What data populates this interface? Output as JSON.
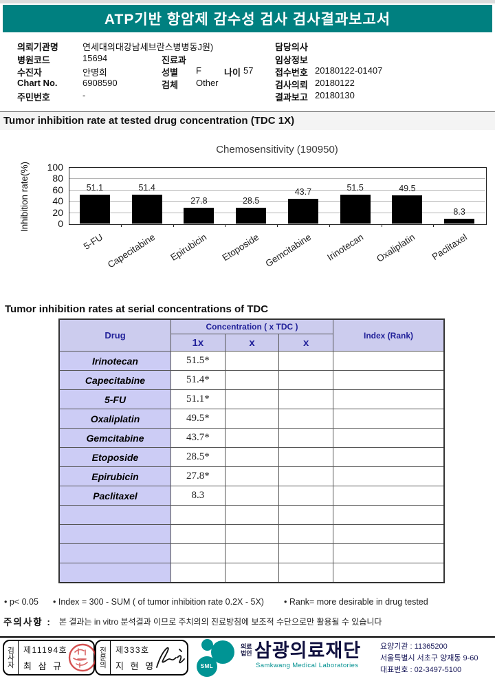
{
  "report": {
    "title": "ATP기반 항암제 감수성 검사 검사결과보고서"
  },
  "colors": {
    "banner_bg": "#008080",
    "table_header_bg": "#ccccee",
    "drug_cell_bg": "#ccccf5",
    "header_text": "#22229a",
    "bar_color": "#000000",
    "seal_red": "#cc3333",
    "logo_teal": "#009494"
  },
  "patient": {
    "org_label": "의뢰기관명",
    "org_value": "연세대의대강남세브란스병병동J원)",
    "doctor_label": "담당의사",
    "doctor_value": "",
    "hospital_code_label": "병원코드",
    "hospital_code_value": "15694",
    "dept_label": "진료과",
    "dept_value": "",
    "clinical_label": "임상정보",
    "clinical_value": "",
    "patient_label": "수진자",
    "patient_value": "안명희",
    "sex_label": "성별",
    "sex_value": "F",
    "age_label": "나이",
    "age_value": "57",
    "receipt_label": "접수번호",
    "receipt_value": "20180122-01407",
    "chart_label": "Chart No.",
    "chart_value": "6908590",
    "specimen_label": "검체",
    "specimen_value": "Other",
    "request_label": "검사의뢰",
    "request_value": "20180122",
    "resident_label": "주민번호",
    "resident_value": "-",
    "report_label": "결과보고",
    "report_value": "20180130"
  },
  "section1": {
    "title": "Tumor inhibition rate at tested drug concentration (TDC 1X)"
  },
  "chart_data": {
    "type": "bar",
    "title": "Chemosensitivity (190950)",
    "ylabel": "Inhibition rate(%)",
    "categories": [
      "5-FU",
      "Capecitabine",
      "Epirubicin",
      "Etoposide",
      "Gemcitabine",
      "Irinotecan",
      "Oxaliplatin",
      "Paclitaxel"
    ],
    "values": [
      51.1,
      51.4,
      27.8,
      28.5,
      43.7,
      51.5,
      49.5,
      8.3
    ],
    "ylim": [
      0,
      100
    ],
    "yticks": [
      0,
      20,
      40,
      60,
      80,
      100
    ],
    "grid": true,
    "legend": "none",
    "bar_color": "#000000"
  },
  "section2": {
    "title": "Tumor inhibition rates at serial concentrations of TDC"
  },
  "table": {
    "drug_header": "Drug",
    "concentration_header": "Concentration ( x TDC )",
    "sub_headers": [
      "1x",
      "x",
      "x"
    ],
    "index_header": "Index (Rank)",
    "rows": [
      {
        "drug": "Irinotecan",
        "c1": "51.5*",
        "c2": "",
        "c3": "",
        "index": ""
      },
      {
        "drug": "Capecitabine",
        "c1": "51.4*",
        "c2": "",
        "c3": "",
        "index": ""
      },
      {
        "drug": "5-FU",
        "c1": "51.1*",
        "c2": "",
        "c3": "",
        "index": ""
      },
      {
        "drug": "Oxaliplatin",
        "c1": "49.5*",
        "c2": "",
        "c3": "",
        "index": ""
      },
      {
        "drug": "Gemcitabine",
        "c1": "43.7*",
        "c2": "",
        "c3": "",
        "index": ""
      },
      {
        "drug": "Etoposide",
        "c1": "28.5*",
        "c2": "",
        "c3": "",
        "index": ""
      },
      {
        "drug": "Epirubicin",
        "c1": "27.8*",
        "c2": "",
        "c3": "",
        "index": ""
      },
      {
        "drug": "Paclitaxel",
        "c1": "8.3",
        "c2": "",
        "c3": "",
        "index": ""
      },
      {
        "drug": "",
        "c1": "",
        "c2": "",
        "c3": "",
        "index": ""
      },
      {
        "drug": "",
        "c1": "",
        "c2": "",
        "c3": "",
        "index": ""
      },
      {
        "drug": "",
        "c1": "",
        "c2": "",
        "c3": "",
        "index": ""
      },
      {
        "drug": "",
        "c1": "",
        "c2": "",
        "c3": "",
        "index": ""
      }
    ]
  },
  "notes": {
    "note1": "• p< 0.05",
    "note2": "• Index = 300 - SUM ( of tumor inhibition rate 0.2X  -  5X)",
    "note3": "• Rank= more desirable in drug tested",
    "caution_label": "주의사항 :",
    "caution_text": "본 결과는 in vitro 분석결과 이므로 주치의의 진료방침에 보조적 수단으로만 활용될 수 있습니다"
  },
  "footer": {
    "examiner_role": "검사자",
    "examiner_no": "제11194호",
    "examiner_name": "최 삼 규",
    "specialist_role": "전문의",
    "specialist_no": "제333호",
    "specialist_name": "지 현 영",
    "logo_text": "SML",
    "org_type": "의료법인",
    "org_name": "삼광의료재단",
    "org_name_en": "Samkwang Medical Laboratories",
    "care_org": "요양기관 : 11365200",
    "address": "서울특별시 서초구 양재동 9-60",
    "phone": "대표번호 : 02-3497-5100"
  }
}
